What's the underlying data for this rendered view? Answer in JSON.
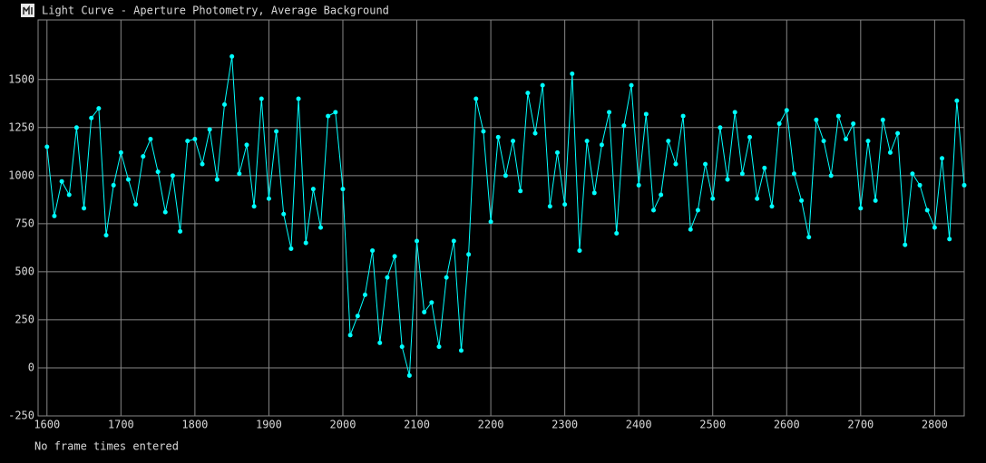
{
  "window": {
    "title": "Light Curve - Aperture Photometry, Average Background"
  },
  "chart_data": {
    "type": "line",
    "color": "#00ffff",
    "x": [
      1600,
      1610,
      1620,
      1630,
      1640,
      1650,
      1660,
      1670,
      1680,
      1690,
      1700,
      1710,
      1720,
      1730,
      1740,
      1750,
      1760,
      1770,
      1780,
      1790,
      1800,
      1810,
      1820,
      1830,
      1840,
      1850,
      1860,
      1870,
      1880,
      1890,
      1900,
      1910,
      1920,
      1930,
      1940,
      1950,
      1960,
      1970,
      1980,
      1990,
      2000,
      2010,
      2020,
      2030,
      2040,
      2050,
      2060,
      2070,
      2080,
      2090,
      2100,
      2110,
      2120,
      2130,
      2140,
      2150,
      2160,
      2170,
      2180,
      2190,
      2200,
      2210,
      2220,
      2230,
      2240,
      2250,
      2260,
      2270,
      2280,
      2290,
      2300,
      2310,
      2320,
      2330,
      2340,
      2350,
      2360,
      2370,
      2380,
      2390,
      2400,
      2410,
      2420,
      2430,
      2440,
      2450,
      2460,
      2470,
      2480,
      2490,
      2500,
      2510,
      2520,
      2530,
      2540,
      2550,
      2560,
      2570,
      2580,
      2590,
      2600,
      2610,
      2620,
      2630,
      2640,
      2650,
      2660,
      2670,
      2680,
      2690,
      2700,
      2710,
      2720,
      2730,
      2740,
      2750,
      2760,
      2770,
      2780,
      2790,
      2800,
      2810,
      2820,
      2830,
      2840
    ],
    "values": [
      1150,
      790,
      970,
      900,
      1250,
      830,
      1300,
      1350,
      690,
      950,
      1120,
      980,
      850,
      1100,
      1190,
      1020,
      810,
      1000,
      710,
      1180,
      1190,
      1060,
      1240,
      980,
      1370,
      1620,
      1010,
      1160,
      840,
      1400,
      880,
      1230,
      800,
      620,
      1400,
      650,
      930,
      730,
      1310,
      1330,
      930,
      170,
      270,
      380,
      610,
      130,
      470,
      580,
      110,
      -40,
      660,
      290,
      340,
      110,
      470,
      660,
      90,
      590,
      1400,
      1230,
      760,
      1200,
      1000,
      1180,
      920,
      1430,
      1220,
      1470,
      840,
      1120,
      850,
      1530,
      610,
      1180,
      910,
      1160,
      1330,
      700,
      1260,
      1470,
      950,
      1320,
      820,
      900,
      1180,
      1060,
      1310,
      720,
      820,
      1060,
      880,
      1250,
      980,
      1330,
      1010,
      1200,
      880,
      1040,
      840,
      1270,
      1340,
      1010,
      870,
      680,
      1290,
      1180,
      1000,
      1310,
      1190,
      1270,
      830,
      1180,
      870,
      1290,
      1120,
      1220,
      640,
      1010,
      950,
      820,
      730,
      1090,
      670,
      1390,
      950
    ],
    "xlim": [
      1588,
      2840
    ],
    "ylim": [
      -250,
      1810
    ],
    "xticks": [
      1600,
      1700,
      1800,
      1900,
      2000,
      2100,
      2200,
      2300,
      2400,
      2500,
      2600,
      2700,
      2800
    ],
    "yticks": [
      -250,
      0,
      250,
      500,
      750,
      1000,
      1250,
      1500
    ],
    "grid": true
  },
  "status": "No frame times entered"
}
